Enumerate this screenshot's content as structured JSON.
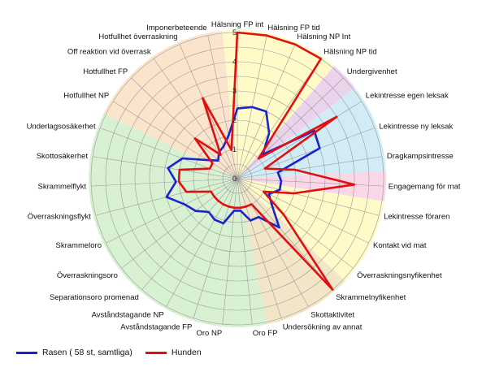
{
  "chart_data": {
    "type": "radar",
    "rmax": 5,
    "ticks": [
      "0",
      "1",
      "2",
      "3",
      "4",
      "5"
    ],
    "categories": [
      "Hälsning FP int",
      "Hälsning FP tid",
      "Hälsning NP Int",
      "Hälsning NP tid",
      "Undergivenhet",
      "Lekintresse egen leksak",
      "Lekintresse ny leksak",
      "Dragkampsintresse",
      "Engagemang för mat",
      "Lekintresse föraren",
      "Kontakt vid mat",
      "Överraskningsnyfikenhet",
      "Skrammelnyfikenhet",
      "Skottaktivitet",
      "Undersökning av annat",
      "Oro FP",
      "Oro NP",
      "Avståndstagande FP",
      "Avståndstagande NP",
      "Separationsoro promenad",
      "Överraskningsoro",
      "Skrammeloro",
      "Överraskningsflykt",
      "Skrammelflykt",
      "Skottosäkerhet",
      "Underlagsosäkerhet",
      "Hotfullhet NP",
      "Hotfullhet FP",
      "Off reaktion vid överrask",
      "Hotfullhet överraskning",
      "Imponerbeteende"
    ],
    "series": [
      {
        "name": "Rasen ( 58 st, samtliga)",
        "color": "#1a24c8",
        "values": [
          2.4,
          2.5,
          2.5,
          1.9,
          1.2,
          3.1,
          3.0,
          1.4,
          1.5,
          1.5,
          1.2,
          1.5,
          2.2,
          1.5,
          1.5,
          1.1,
          1.1,
          1.6,
          1.6,
          1.5,
          1.8,
          2.0,
          2.5,
          2.1,
          2.4,
          2.0,
          1.2,
          0.9,
          1.1,
          1.2,
          1.5
        ]
      },
      {
        "name": "Hunden",
        "color": "#e01010",
        "values": [
          5.0,
          5.0,
          5.0,
          5.0,
          1.0,
          4.0,
          1.0,
          2.0,
          4.0,
          2.0,
          1.0,
          2.0,
          5.0,
          1.0,
          1.0,
          1.0,
          1.0,
          1.0,
          1.0,
          1.0,
          1.0,
          1.0,
          1.8,
          2.0,
          2.0,
          1.0,
          1.0,
          2.0,
          1.0,
          3.0,
          1.0
        ]
      }
    ],
    "sectors": [
      {
        "from": 0,
        "to": 3,
        "color": "#fffbc8"
      },
      {
        "from": 4,
        "to": 4,
        "color": "#ecd3ec"
      },
      {
        "from": 5,
        "to": 7,
        "color": "#d2ecf6"
      },
      {
        "from": 8,
        "to": 8,
        "color": "#f9d7e6"
      },
      {
        "from": 9,
        "to": 11,
        "color": "#fffbc8"
      },
      {
        "from": 12,
        "to": 14,
        "color": "#f3e6c8"
      },
      {
        "from": 15,
        "to": 25,
        "color": "#d9f1d3"
      },
      {
        "from": 26,
        "to": 30,
        "color": "#fbe4cc"
      }
    ],
    "grid": true,
    "legend_position": "bottom-left"
  }
}
